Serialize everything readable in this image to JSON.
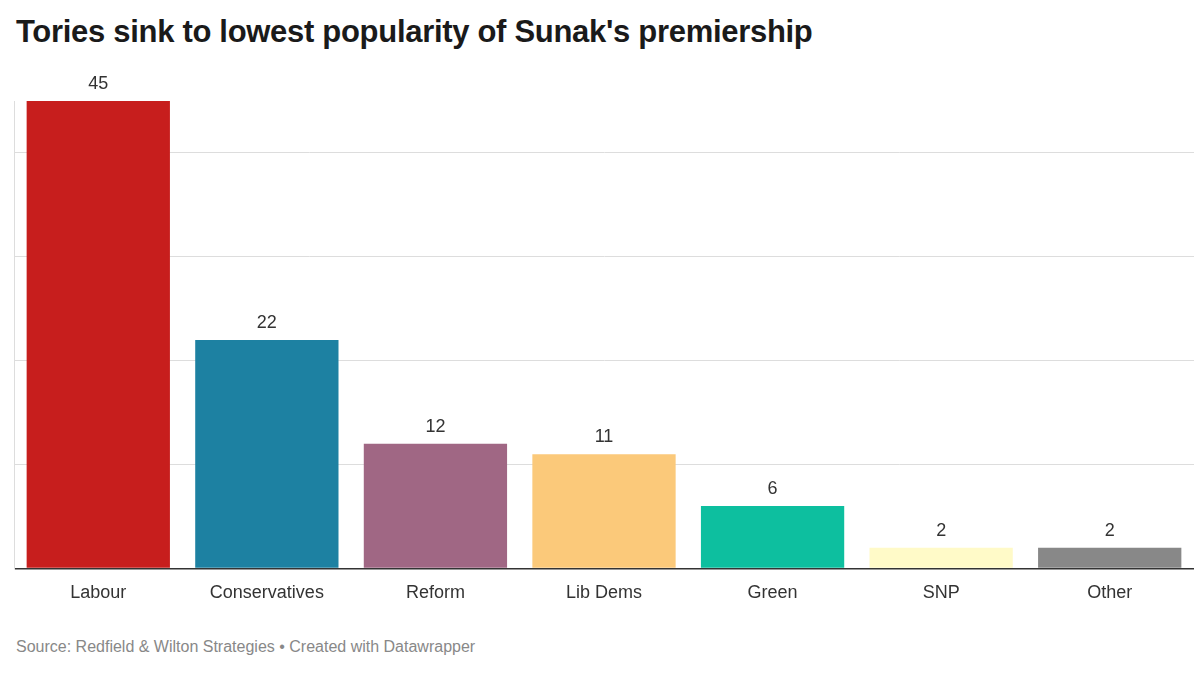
{
  "chart_data": {
    "type": "bar",
    "title": "Tories sink to lowest popularity of Sunak's premiership",
    "source": "Source: Redfield & Wilton Strategies • Created with Datawrapper",
    "categories": [
      "Labour",
      "Conservatives",
      "Reform",
      "Lib Dems",
      "Green",
      "SNP",
      "Other"
    ],
    "values": [
      45,
      22,
      12,
      11,
      6,
      2,
      2
    ],
    "colors": [
      "#c71e1d",
      "#1d81a2",
      "#a06784",
      "#fbc97a",
      "#0dbf9f",
      "#fffac8",
      "#888888"
    ],
    "ylim": [
      0,
      45
    ],
    "yticks": [
      0,
      10,
      20,
      30,
      40
    ],
    "grid": true,
    "data_labels": true,
    "tick_labels": "x"
  }
}
